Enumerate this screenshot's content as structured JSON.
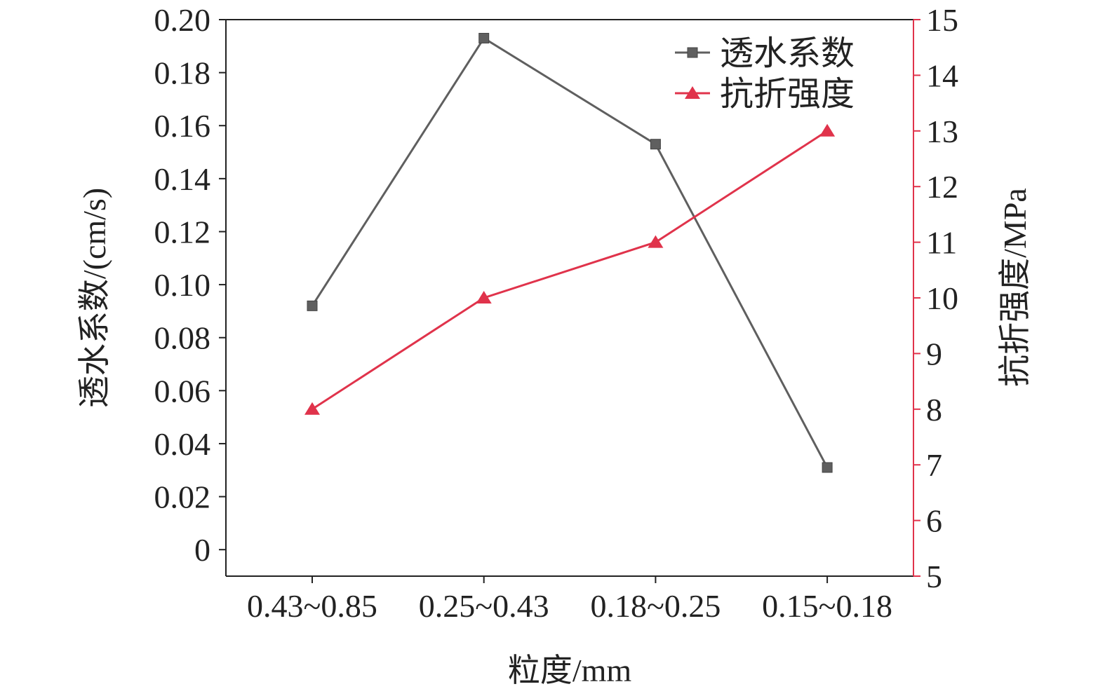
{
  "chart_data": {
    "type": "line",
    "categories": [
      "0.43~0.85",
      "0.25~0.43",
      "0.18~0.25",
      "0.15~0.18"
    ],
    "xlabel": "粒度/mm",
    "y_left": {
      "label": "透水系数/(cm/s)",
      "lim": [
        -0.01,
        0.2
      ],
      "ticks": [
        0,
        0.02,
        0.04,
        0.06,
        0.08,
        0.1,
        0.12,
        0.14,
        0.16,
        0.18,
        0.2
      ],
      "tick_labels": [
        "0",
        "0.02",
        "0.04",
        "0.06",
        "0.08",
        "0.10",
        "0.12",
        "0.14",
        "0.16",
        "0.18",
        "0.20"
      ]
    },
    "y_right": {
      "label": "抗折强度/MPa",
      "lim": [
        5,
        15
      ],
      "ticks": [
        5,
        6,
        7,
        8,
        9,
        10,
        11,
        12,
        13,
        14,
        15
      ],
      "tick_labels": [
        "5",
        "6",
        "7",
        "8",
        "9",
        "10",
        "11",
        "12",
        "13",
        "14",
        "15"
      ]
    },
    "series": [
      {
        "name": "透水系数",
        "axis": "left",
        "marker": "square",
        "color": "#5f5f5f",
        "values": [
          0.092,
          0.193,
          0.153,
          0.031
        ]
      },
      {
        "name": "抗折强度",
        "axis": "right",
        "marker": "triangle",
        "color": "#e0334b",
        "values": [
          8.0,
          10.0,
          11.0,
          13.0
        ]
      }
    ],
    "legend": "top-right",
    "grid": false
  }
}
